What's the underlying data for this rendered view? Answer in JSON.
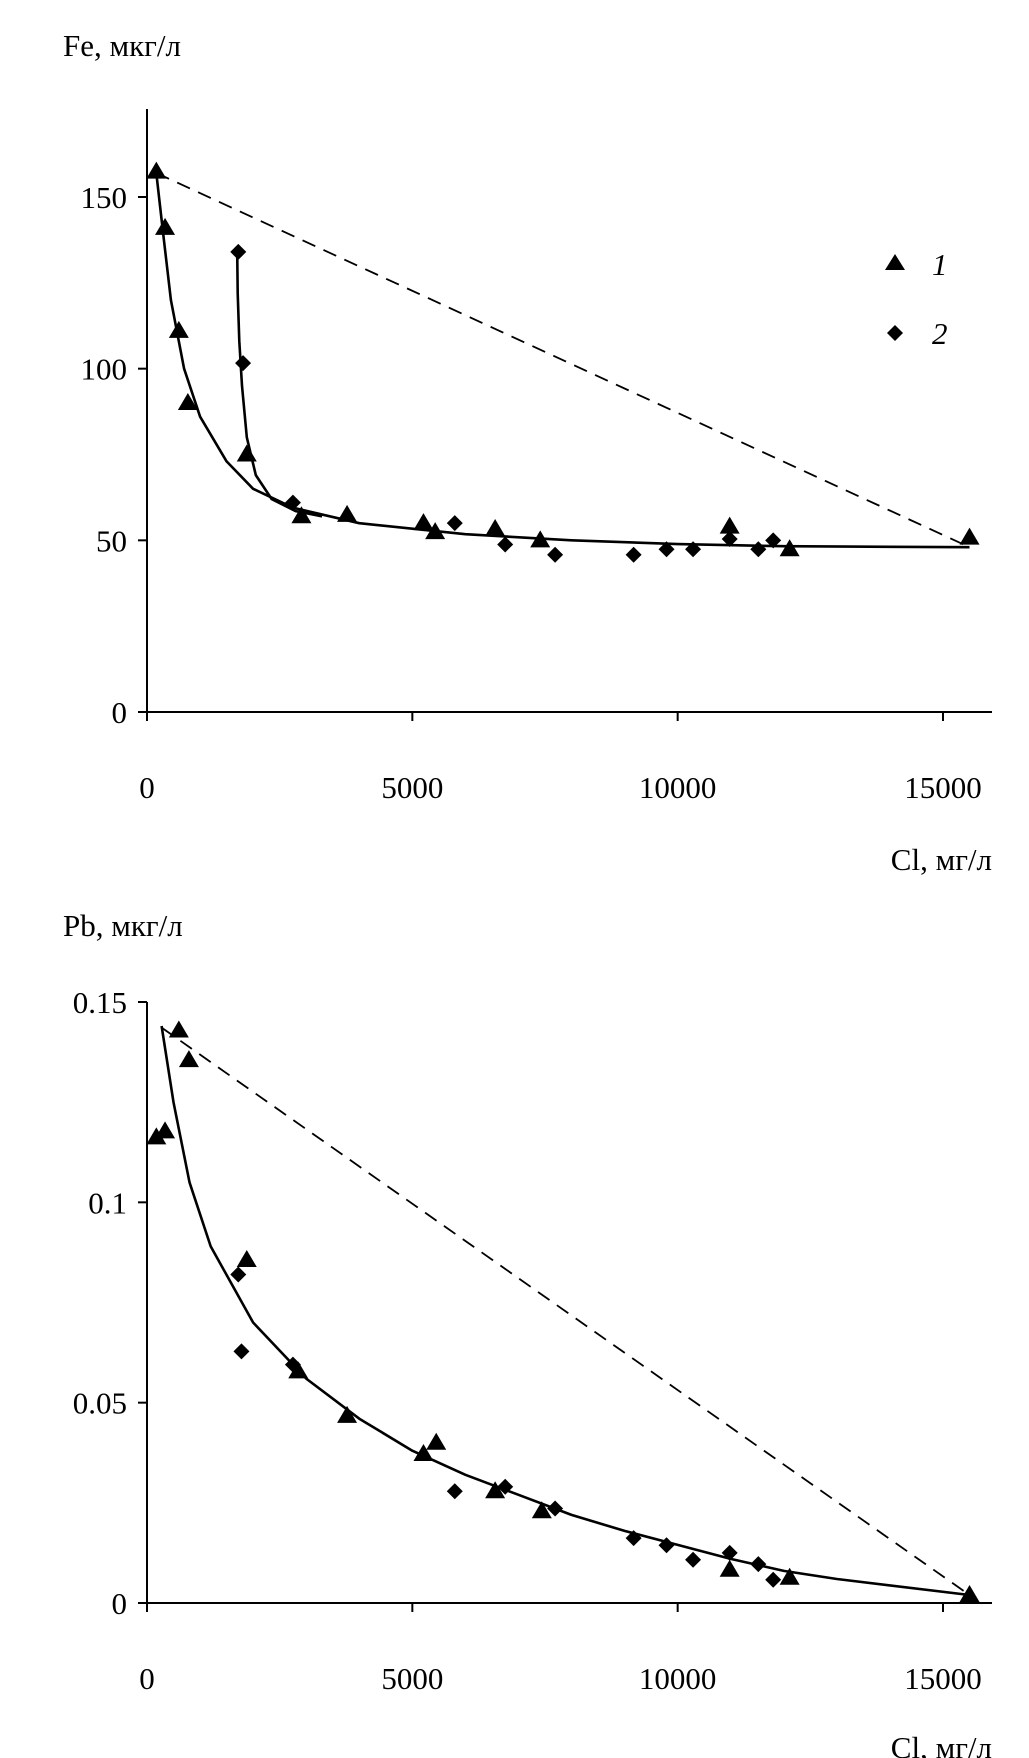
{
  "chart_data": [
    {
      "type": "scatter",
      "ylabel": "Fe, мкг/л",
      "xlabel": "Cl, мг/л",
      "xlim": [
        0,
        16000
      ],
      "ylim": [
        0,
        175
      ],
      "xticks": [
        "0",
        "5000",
        "10000",
        "15000"
      ],
      "yticks": [
        "0",
        "50",
        "100",
        "150"
      ],
      "xtick_values": [
        0,
        5000,
        10000,
        15000
      ],
      "ytick_values": [
        0,
        50,
        100,
        150
      ],
      "grid": false,
      "legend_placement": "top-right",
      "series": [
        {
          "name": "1",
          "marker": "triangle",
          "x": [
            176,
            340,
            600,
            770,
            1880,
            2910,
            3770,
            5210,
            5430,
            6560,
            7410,
            10980,
            12110,
            15500
          ],
          "y": [
            157.4,
            141,
            111,
            90,
            75,
            57,
            57.4,
            55,
            52.4,
            53.3,
            50,
            54,
            47.4,
            50.8
          ]
        },
        {
          "name": "2",
          "marker": "diamond",
          "x": [
            1720,
            1810,
            2750,
            5800,
            6750,
            7690,
            9170,
            9790,
            10290,
            10980,
            11520,
            11800
          ],
          "y": [
            134,
            101.6,
            61,
            55,
            48.8,
            45.8,
            45.8,
            47.4,
            47.4,
            50.4,
            47.4,
            50
          ]
        }
      ],
      "lines": [
        {
          "style": "dashed",
          "x": [
            176,
            15500
          ],
          "y": [
            157,
            48
          ]
        },
        {
          "style": "solid",
          "x": [
            176,
            300,
            450,
            700,
            1000,
            1500,
            2000,
            2750,
            4000,
            6000,
            8000,
            10000,
            12000,
            15500
          ],
          "y": [
            157,
            140,
            120,
            100,
            86,
            73,
            65,
            59.5,
            55,
            51.8,
            50,
            48.9,
            48.3,
            48
          ]
        },
        {
          "style": "solid",
          "x": [
            1700,
            1710,
            1740,
            1790,
            1880,
            2050,
            2350,
            2800,
            3300
          ],
          "y": [
            134,
            122,
            108,
            95,
            80,
            69,
            62,
            58.5,
            57
          ]
        }
      ]
    },
    {
      "type": "scatter",
      "ylabel": "Pb, мкг/л",
      "xlabel": "Cl, мг/л",
      "xlim": [
        0,
        16000
      ],
      "ylim": [
        0,
        0.15
      ],
      "xticks": [
        "0",
        "5000",
        "10000",
        "15000"
      ],
      "yticks": [
        "0",
        "0.05",
        "0.1",
        "0.15"
      ],
      "xtick_values": [
        0,
        5000,
        10000,
        15000
      ],
      "ytick_values": [
        0,
        0.05,
        0.1,
        0.15
      ],
      "grid": false,
      "series": [
        {
          "name": "1",
          "marker": "triangle",
          "x": [
            176,
            340,
            600,
            790,
            1880,
            2850,
            3770,
            5210,
            5450,
            6560,
            7440,
            10980,
            12110,
            15500
          ],
          "y": [
            0.1162,
            0.1177,
            0.1429,
            0.1355,
            0.0856,
            0.0578,
            0.0467,
            0.0372,
            0.04,
            0.0279,
            0.0229,
            0.0083,
            0.0063,
            0.002
          ]
        },
        {
          "name": "2",
          "marker": "diamond",
          "x": [
            1720,
            1780,
            2750,
            5800,
            6750,
            7690,
            9170,
            9790,
            10290,
            10980,
            11520,
            11800
          ],
          "y": [
            0.082,
            0.0628,
            0.0595,
            0.0279,
            0.029,
            0.0236,
            0.0162,
            0.0144,
            0.0108,
            0.0125,
            0.0097,
            0.0058
          ]
        }
      ],
      "lines": [
        {
          "style": "dashed",
          "x": [
            276,
            15500
          ],
          "y": [
            0.1436,
            0.002
          ]
        },
        {
          "style": "solid",
          "x": [
            276,
            500,
            800,
            1200,
            2000,
            3000,
            4000,
            5000,
            6000,
            7000,
            8000,
            9000,
            10000,
            11000,
            12000,
            13000,
            15500
          ],
          "y": [
            0.144,
            0.125,
            0.105,
            0.089,
            0.07,
            0.056,
            0.046,
            0.038,
            0.032,
            0.027,
            0.022,
            0.018,
            0.0145,
            0.011,
            0.008,
            0.006,
            0.002
          ]
        }
      ]
    }
  ]
}
